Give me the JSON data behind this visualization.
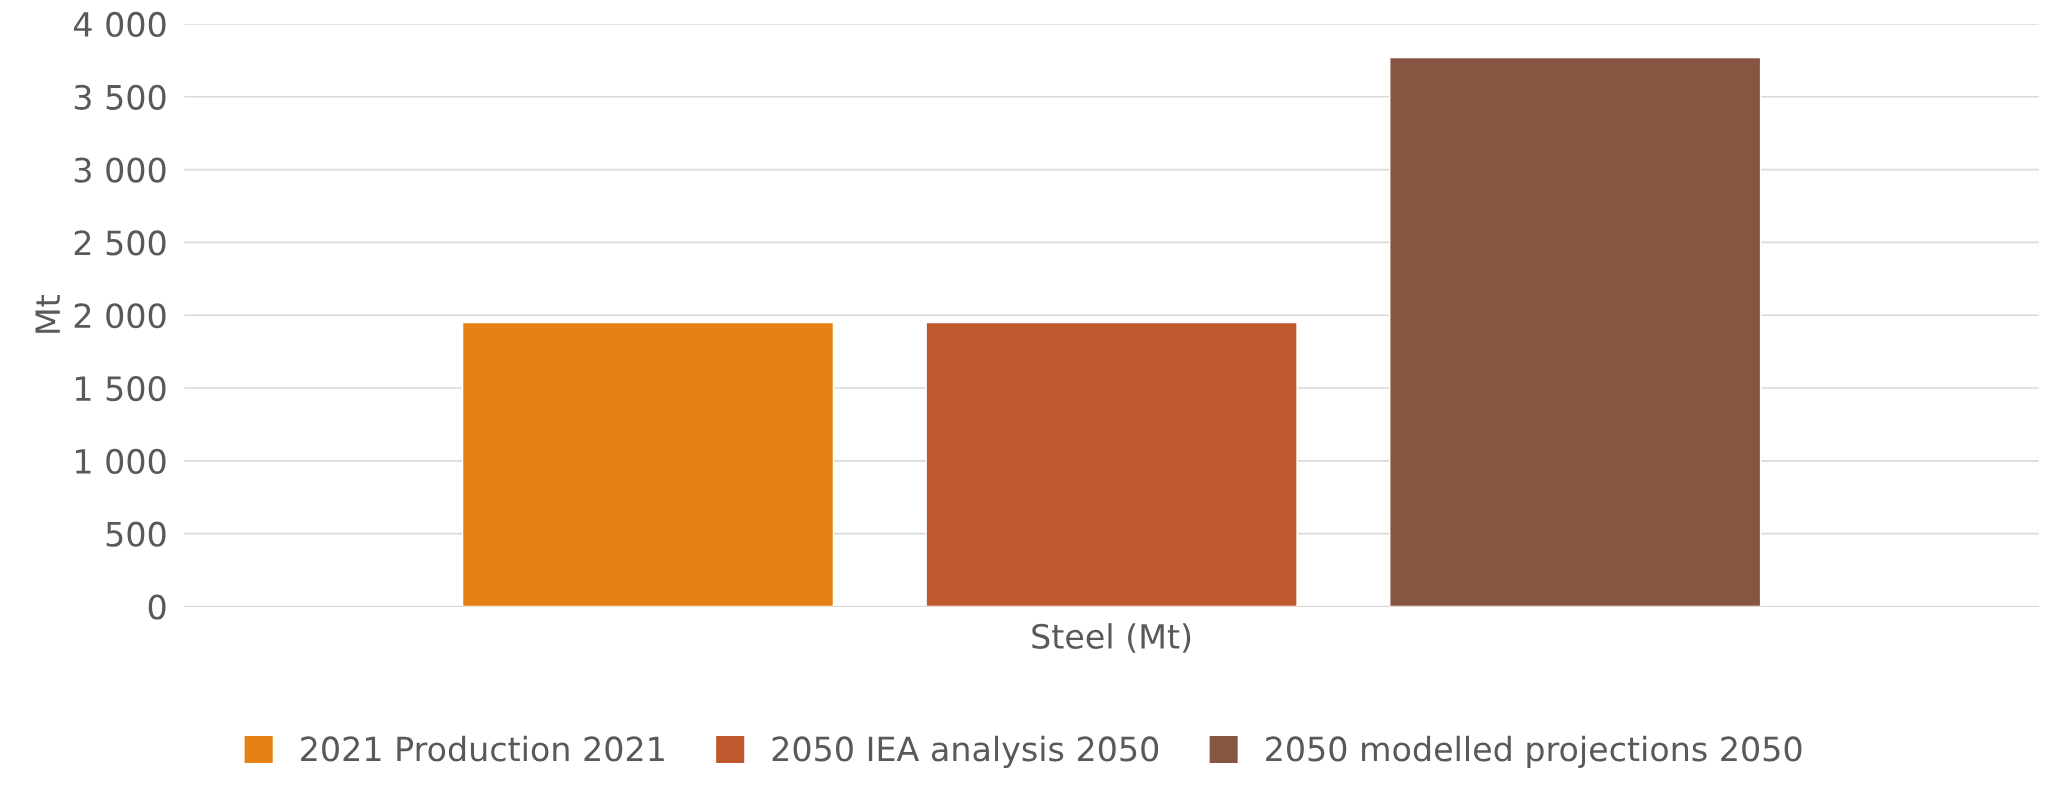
{
  "chart_data": {
    "type": "bar",
    "ylabel": "Mt",
    "categories": [
      "Steel (Mt)"
    ],
    "series": [
      {
        "name": "2021 Production 2021",
        "color": "#e58213",
        "values": [
          1950
        ]
      },
      {
        "name": "2050 IEA analysis 2050",
        "color": "#bf582c",
        "values": [
          1950
        ]
      },
      {
        "name": "2050 modelled projections 2050",
        "color": "#865642",
        "values": [
          3770
        ]
      }
    ],
    "ylim": [
      0,
      4000
    ],
    "yticks": [
      0,
      500,
      {
        "value": 1000,
        "label": "1 000"
      },
      {
        "value": 1500,
        "label": "1 500"
      },
      {
        "value": 2000,
        "label": "2 000"
      },
      {
        "value": 2500,
        "label": "2 500"
      },
      {
        "value": 3000,
        "label": "3 000"
      },
      {
        "value": 3500,
        "label": "3 500"
      },
      {
        "value": 4000,
        "label": "4 000"
      }
    ],
    "grid": "y",
    "legend": "bottom"
  }
}
